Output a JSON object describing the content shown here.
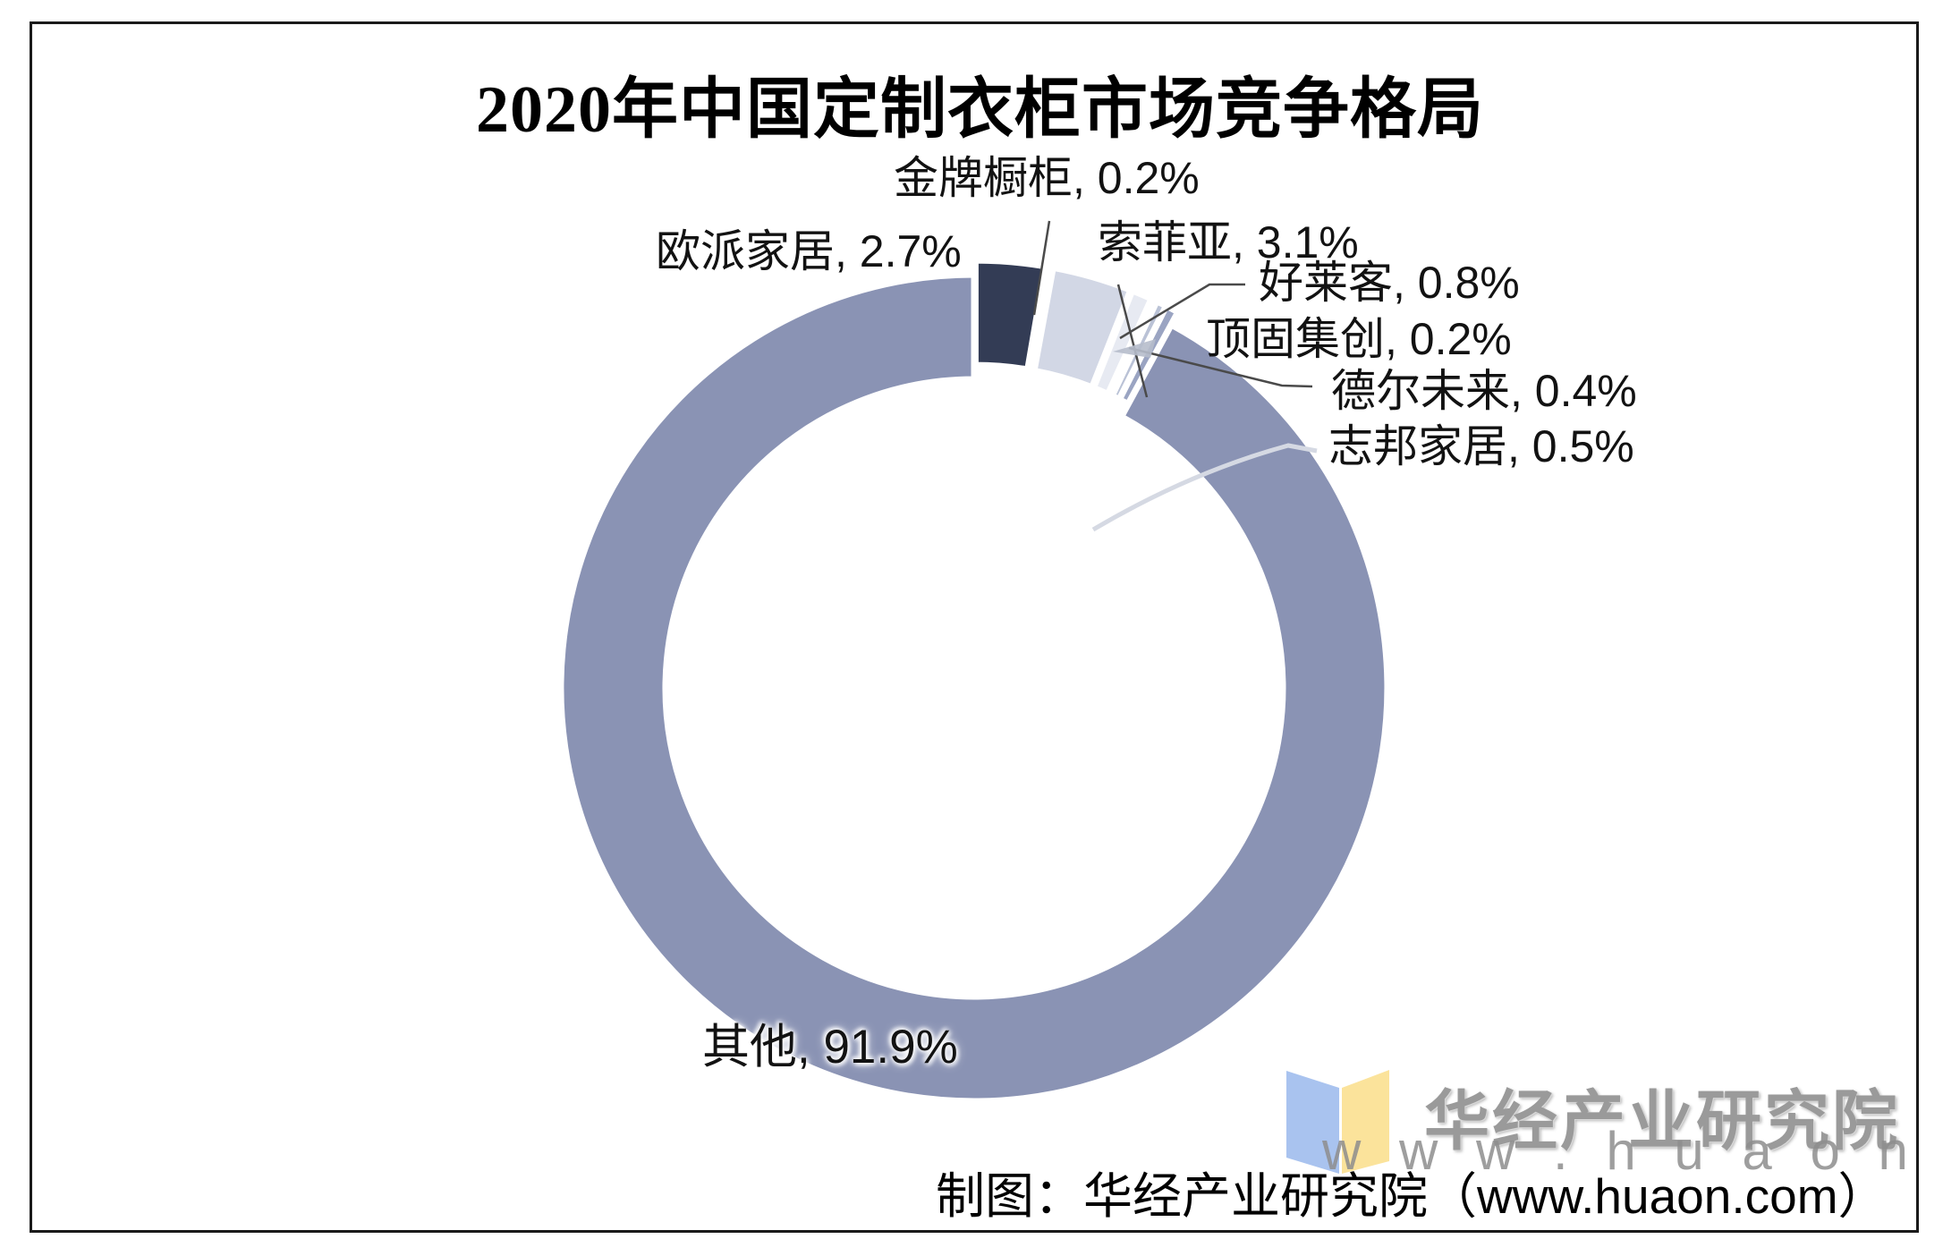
{
  "title": "2020年中国定制衣柜市场竞争格局",
  "footer": "制图：华经产业研究院（www.huaon.com）",
  "watermark": {
    "brand": "华经产业研究院",
    "url": "w w w . h u a o n . c o m"
  },
  "chart_data": {
    "type": "pie",
    "subtype": "donut",
    "title": "2020年中国定制衣柜市场竞争格局",
    "unit": "%",
    "start_angle_deg": 0,
    "direction": "clockwise",
    "donut_hole_ratio": 0.75,
    "legend": "none",
    "segments": [
      {
        "name": "欧派家居",
        "value": 2.7,
        "label": "欧派家居, 2.7%",
        "color": "#333C55"
      },
      {
        "name": "金牌橱柜",
        "value": 0.2,
        "label": "金牌橱柜, 0.2%",
        "color": "#AEB6CC"
      },
      {
        "name": "索菲亚",
        "value": 3.1,
        "label": "索菲亚, 3.1%",
        "color": "#D2D7E5"
      },
      {
        "name": "好莱客",
        "value": 0.8,
        "label": "好莱客, 0.8%",
        "color": "#E7EAF2"
      },
      {
        "name": "顶固集创",
        "value": 0.2,
        "label": "顶固集创, 0.2%",
        "color": "#DFE3ED"
      },
      {
        "name": "德尔未来",
        "value": 0.4,
        "label": "德尔未来, 0.4%",
        "color": "#BAC2D6"
      },
      {
        "name": "志邦家居",
        "value": 0.5,
        "label": "志邦家居, 0.5%",
        "color": "#9AA4C2"
      },
      {
        "name": "其他",
        "value": 91.9,
        "label": "其他, 91.9%",
        "color": "#8A93B4"
      }
    ]
  }
}
